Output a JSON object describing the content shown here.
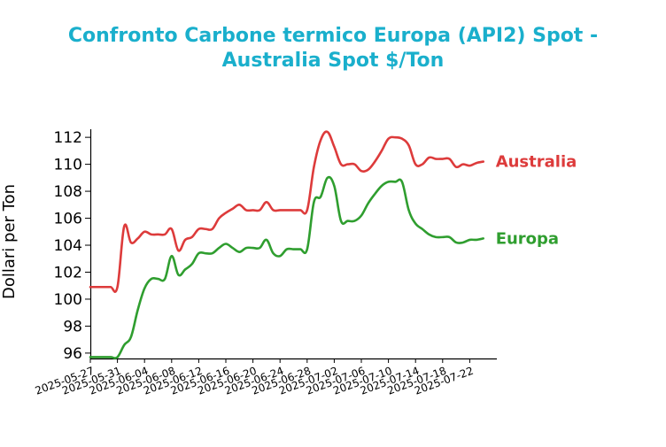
{
  "chart_data": {
    "type": "line",
    "title_lines": [
      "Confronto Carbone termico Europa (API2) Spot -",
      "Australia Spot $/Ton"
    ],
    "title_color": "#1aafcc",
    "ylabel": "Dollari per Ton",
    "xlabel": "",
    "ylim": [
      95.6,
      112.6
    ],
    "yticks": [
      96,
      98,
      100,
      102,
      104,
      106,
      108,
      110,
      112
    ],
    "ytick_labels": [
      "96",
      "98",
      "100",
      "102",
      "104",
      "106",
      "108",
      "110",
      "112"
    ],
    "xlim": [
      "2025-05-27",
      "2025-07-26"
    ],
    "xticks": [
      "2025-05-27",
      "2025-05-31",
      "2025-06-04",
      "2025-06-08",
      "2025-06-12",
      "2025-06-16",
      "2025-06-20",
      "2025-06-24",
      "2025-06-28",
      "2025-07-02",
      "2025-07-06",
      "2025-07-10",
      "2025-07-14",
      "2025-07-18",
      "2025-07-22"
    ],
    "xtick_labels": [
      "2025-05-27",
      "2025-05-31",
      "2025-06-04",
      "2025-06-08",
      "2025-06-12",
      "2025-06-16",
      "2025-06-20",
      "2025-06-24",
      "2025-06-28",
      "2025-07-02",
      "2025-07-06",
      "2025-07-10",
      "2025-07-14",
      "2025-07-18",
      "2025-07-22"
    ],
    "grid": false,
    "series": [
      {
        "name": "Australia",
        "color": "#dd3b3b",
        "points": [
          [
            "2025-05-27",
            100.9
          ],
          [
            "2025-05-28",
            100.9
          ],
          [
            "2025-05-29",
            100.9
          ],
          [
            "2025-05-30",
            100.9
          ],
          [
            "2025-05-31",
            100.9
          ],
          [
            "2025-06-01",
            105.4
          ],
          [
            "2025-06-02",
            104.2
          ],
          [
            "2025-06-03",
            104.5
          ],
          [
            "2025-06-04",
            105.0
          ],
          [
            "2025-06-05",
            104.8
          ],
          [
            "2025-06-06",
            104.8
          ],
          [
            "2025-06-07",
            104.8
          ],
          [
            "2025-06-08",
            105.2
          ],
          [
            "2025-06-09",
            103.6
          ],
          [
            "2025-06-10",
            104.4
          ],
          [
            "2025-06-11",
            104.6
          ],
          [
            "2025-06-12",
            105.2
          ],
          [
            "2025-06-13",
            105.2
          ],
          [
            "2025-06-14",
            105.2
          ],
          [
            "2025-06-15",
            106.0
          ],
          [
            "2025-06-16",
            106.4
          ],
          [
            "2025-06-17",
            106.7
          ],
          [
            "2025-06-18",
            107.0
          ],
          [
            "2025-06-19",
            106.6
          ],
          [
            "2025-06-20",
            106.6
          ],
          [
            "2025-06-21",
            106.6
          ],
          [
            "2025-06-22",
            107.2
          ],
          [
            "2025-06-23",
            106.6
          ],
          [
            "2025-06-24",
            106.6
          ],
          [
            "2025-06-25",
            106.6
          ],
          [
            "2025-06-26",
            106.6
          ],
          [
            "2025-06-27",
            106.6
          ],
          [
            "2025-06-28",
            106.6
          ],
          [
            "2025-06-29",
            109.8
          ],
          [
            "2025-06-30",
            111.8
          ],
          [
            "2025-07-01",
            112.4
          ],
          [
            "2025-07-02",
            111.3
          ],
          [
            "2025-07-03",
            110.0
          ],
          [
            "2025-07-04",
            110.0
          ],
          [
            "2025-07-05",
            110.0
          ],
          [
            "2025-07-06",
            109.5
          ],
          [
            "2025-07-07",
            109.6
          ],
          [
            "2025-07-08",
            110.2
          ],
          [
            "2025-07-09",
            111.0
          ],
          [
            "2025-07-10",
            111.9
          ],
          [
            "2025-07-11",
            112.0
          ],
          [
            "2025-07-12",
            111.9
          ],
          [
            "2025-07-13",
            111.4
          ],
          [
            "2025-07-14",
            110.0
          ],
          [
            "2025-07-15",
            110.0
          ],
          [
            "2025-07-16",
            110.5
          ],
          [
            "2025-07-17",
            110.4
          ],
          [
            "2025-07-18",
            110.4
          ],
          [
            "2025-07-19",
            110.4
          ],
          [
            "2025-07-20",
            109.8
          ],
          [
            "2025-07-21",
            110.0
          ],
          [
            "2025-07-22",
            109.9
          ],
          [
            "2025-07-23",
            110.1
          ],
          [
            "2025-07-24",
            110.2
          ]
        ]
      },
      {
        "name": "Europa",
        "color": "#2f9e2f",
        "points": [
          [
            "2025-05-27",
            95.7
          ],
          [
            "2025-05-28",
            95.7
          ],
          [
            "2025-05-29",
            95.7
          ],
          [
            "2025-05-30",
            95.7
          ],
          [
            "2025-05-31",
            95.7
          ],
          [
            "2025-06-01",
            96.6
          ],
          [
            "2025-06-02",
            97.2
          ],
          [
            "2025-06-03",
            99.2
          ],
          [
            "2025-06-04",
            100.8
          ],
          [
            "2025-06-05",
            101.5
          ],
          [
            "2025-06-06",
            101.5
          ],
          [
            "2025-06-07",
            101.5
          ],
          [
            "2025-06-08",
            103.2
          ],
          [
            "2025-06-09",
            101.8
          ],
          [
            "2025-06-10",
            102.2
          ],
          [
            "2025-06-11",
            102.6
          ],
          [
            "2025-06-12",
            103.4
          ],
          [
            "2025-06-13",
            103.4
          ],
          [
            "2025-06-14",
            103.4
          ],
          [
            "2025-06-15",
            103.8
          ],
          [
            "2025-06-16",
            104.1
          ],
          [
            "2025-06-17",
            103.8
          ],
          [
            "2025-06-18",
            103.5
          ],
          [
            "2025-06-19",
            103.8
          ],
          [
            "2025-06-20",
            103.8
          ],
          [
            "2025-06-21",
            103.8
          ],
          [
            "2025-06-22",
            104.4
          ],
          [
            "2025-06-23",
            103.4
          ],
          [
            "2025-06-24",
            103.2
          ],
          [
            "2025-06-25",
            103.7
          ],
          [
            "2025-06-26",
            103.7
          ],
          [
            "2025-06-27",
            103.7
          ],
          [
            "2025-06-28",
            103.7
          ],
          [
            "2025-06-29",
            107.2
          ],
          [
            "2025-06-30",
            107.6
          ],
          [
            "2025-07-01",
            109.0
          ],
          [
            "2025-07-02",
            108.4
          ],
          [
            "2025-07-03",
            105.8
          ],
          [
            "2025-07-04",
            105.8
          ],
          [
            "2025-07-05",
            105.8
          ],
          [
            "2025-07-06",
            106.2
          ],
          [
            "2025-07-07",
            107.1
          ],
          [
            "2025-07-08",
            107.8
          ],
          [
            "2025-07-09",
            108.4
          ],
          [
            "2025-07-10",
            108.7
          ],
          [
            "2025-07-11",
            108.7
          ],
          [
            "2025-07-12",
            108.7
          ],
          [
            "2025-07-13",
            106.6
          ],
          [
            "2025-07-14",
            105.6
          ],
          [
            "2025-07-15",
            105.2
          ],
          [
            "2025-07-16",
            104.8
          ],
          [
            "2025-07-17",
            104.6
          ],
          [
            "2025-07-18",
            104.6
          ],
          [
            "2025-07-19",
            104.6
          ],
          [
            "2025-07-20",
            104.2
          ],
          [
            "2025-07-21",
            104.2
          ],
          [
            "2025-07-22",
            104.4
          ],
          [
            "2025-07-23",
            104.4
          ],
          [
            "2025-07-24",
            104.5
          ]
        ]
      }
    ]
  }
}
